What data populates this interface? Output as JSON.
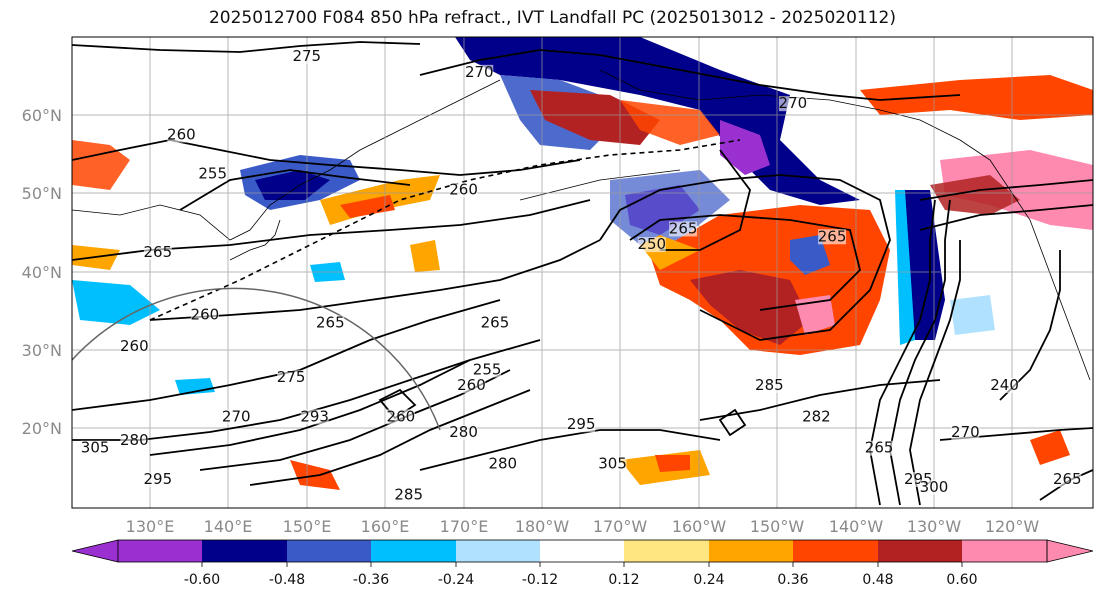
{
  "title": "2025012700 F084 850 hPa refract., IVT Landfall PC (2025013012 - 2025020112)",
  "lat_labels": [
    "60°N",
    "50°N",
    "40°N",
    "30°N",
    "20°N"
  ],
  "lon_labels": [
    "130°E",
    "140°E",
    "150°E",
    "160°E",
    "170°E",
    "180°W",
    "170°W",
    "160°W",
    "150°W",
    "140°W",
    "130°W",
    "120°W"
  ],
  "colorbar": {
    "colors": [
      "#9b30d0",
      "#00008b",
      "#3a5ac8",
      "#00bfff",
      "#b0e2ff",
      "#ffffff",
      "#ffe680",
      "#ffa500",
      "#ff4500",
      "#b22222",
      "#ff8ab0"
    ],
    "tick_labels": [
      "-0.60",
      "-0.48",
      "-0.36",
      "-0.24",
      "-0.12",
      "0.12",
      "0.24",
      "0.36",
      "0.48",
      "0.60"
    ]
  },
  "contour_labels": [
    {
      "text": "275",
      "lon": 150,
      "lat": 67
    },
    {
      "text": "270",
      "lon": 172,
      "lat": 65
    },
    {
      "text": "270",
      "lon": -148,
      "lat": 61
    },
    {
      "text": "260",
      "lon": 134,
      "lat": 57
    },
    {
      "text": "255",
      "lon": 138,
      "lat": 52
    },
    {
      "text": "260",
      "lon": 170,
      "lat": 50
    },
    {
      "text": "265",
      "lon": 131,
      "lat": 42
    },
    {
      "text": "250",
      "lon": -166,
      "lat": 43
    },
    {
      "text": "265",
      "lon": -162,
      "lat": 45
    },
    {
      "text": "265",
      "lon": -143,
      "lat": 44
    },
    {
      "text": "260",
      "lon": 137,
      "lat": 34
    },
    {
      "text": "265",
      "lon": 153,
      "lat": 33
    },
    {
      "text": "265",
      "lon": 174,
      "lat": 33
    },
    {
      "text": "260",
      "lon": 128,
      "lat": 30
    },
    {
      "text": "255",
      "lon": 173,
      "lat": 27
    },
    {
      "text": "260",
      "lon": 171,
      "lat": 25
    },
    {
      "text": "275",
      "lon": 148,
      "lat": 26
    },
    {
      "text": "260",
      "lon": 162,
      "lat": 21
    },
    {
      "text": "285",
      "lon": -151,
      "lat": 25
    },
    {
      "text": "270",
      "lon": 141,
      "lat": 21
    },
    {
      "text": "293",
      "lon": 151,
      "lat": 21
    },
    {
      "text": "280",
      "lon": 170,
      "lat": 19
    },
    {
      "text": "295",
      "lon": -175,
      "lat": 20
    },
    {
      "text": "282",
      "lon": -145,
      "lat": 21
    },
    {
      "text": "270",
      "lon": -126,
      "lat": 19
    },
    {
      "text": "240",
      "lon": -121,
      "lat": 25
    },
    {
      "text": "305",
      "lon": 123,
      "lat": 17
    },
    {
      "text": "280",
      "lon": 128,
      "lat": 18
    },
    {
      "text": "265",
      "lon": -137,
      "lat": 17
    },
    {
      "text": "280",
      "lon": 175,
      "lat": 15
    },
    {
      "text": "305",
      "lon": -171,
      "lat": 15
    },
    {
      "text": "295",
      "lon": 131,
      "lat": 13
    },
    {
      "text": "295",
      "lon": -132,
      "lat": 13
    },
    {
      "text": "300",
      "lon": -130,
      "lat": 12
    },
    {
      "text": "285",
      "lon": 163,
      "lat": 11
    },
    {
      "text": "265",
      "lon": -113,
      "lat": 13
    }
  ],
  "icons": {
    "colorbar_left_arrow": "triangle-left",
    "colorbar_right_arrow": "triangle-right"
  }
}
